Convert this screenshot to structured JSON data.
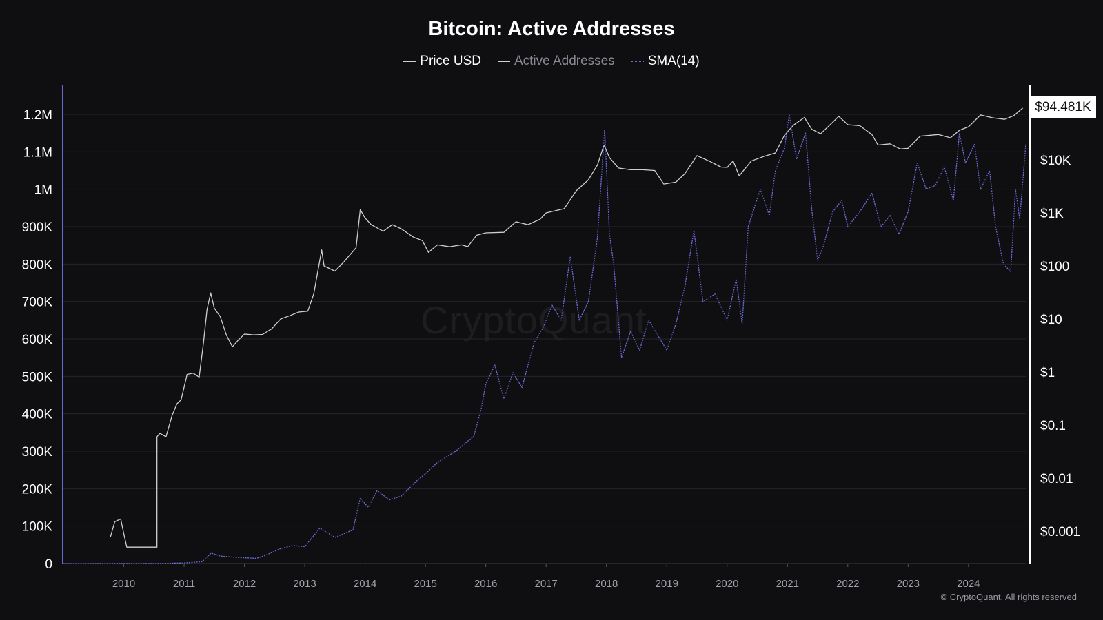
{
  "chart_data": {
    "type": "line",
    "title": "Bitcoin: Active Addresses",
    "legend": [
      {
        "label": "Price USD",
        "color": "#cfcfd4",
        "hidden": false
      },
      {
        "label": "Active Addresses",
        "color": "#cfcfd4",
        "hidden": true
      },
      {
        "label": "SMA(14)",
        "color": "#6b6bd6",
        "hidden": false
      }
    ],
    "x_ticks": [
      "2010",
      "2011",
      "2012",
      "2013",
      "2014",
      "2015",
      "2016",
      "2017",
      "2018",
      "2019",
      "2020",
      "2021",
      "2022",
      "2023",
      "2024"
    ],
    "left_axis": {
      "range": [
        0,
        1200000
      ],
      "ticks": [
        "0",
        "100K",
        "200K",
        "300K",
        "400K",
        "500K",
        "600K",
        "700K",
        "800K",
        "900K",
        "1M",
        "1.1M",
        "1.2M"
      ]
    },
    "right_axis": {
      "scale": "log",
      "ticks": [
        "$0.001",
        "$0.01",
        "$0.1",
        "$1",
        "$10",
        "$100",
        "$1K",
        "$10K"
      ],
      "current_value_label": "$94.481K"
    },
    "x_range": [
      2009.0,
      2024.95
    ],
    "series": [
      {
        "name": "Price USD",
        "axis": "right",
        "color": "#cfcfd4",
        "points": [
          [
            2009.78,
            0.00079
          ],
          [
            2009.85,
            0.0015
          ],
          [
            2009.95,
            0.0017
          ],
          [
            2010.0,
            0.0009
          ],
          [
            2010.05,
            0.0005
          ],
          [
            2010.55,
            0.0005
          ],
          [
            2010.55,
            0.06
          ],
          [
            2010.6,
            0.07
          ],
          [
            2010.7,
            0.06
          ],
          [
            2010.8,
            0.15
          ],
          [
            2010.88,
            0.25
          ],
          [
            2010.95,
            0.3
          ],
          [
            2011.05,
            0.9
          ],
          [
            2011.15,
            0.95
          ],
          [
            2011.25,
            0.8
          ],
          [
            2011.32,
            3.5
          ],
          [
            2011.38,
            15
          ],
          [
            2011.44,
            31
          ],
          [
            2011.5,
            16
          ],
          [
            2011.6,
            11
          ],
          [
            2011.7,
            5
          ],
          [
            2011.8,
            3
          ],
          [
            2011.9,
            4
          ],
          [
            2012.0,
            5.2
          ],
          [
            2012.15,
            5
          ],
          [
            2012.3,
            5.1
          ],
          [
            2012.45,
            6.5
          ],
          [
            2012.6,
            10
          ],
          [
            2012.75,
            11.5
          ],
          [
            2012.9,
            13.5
          ],
          [
            2013.05,
            14
          ],
          [
            2013.15,
            30
          ],
          [
            2013.28,
            200
          ],
          [
            2013.32,
            100
          ],
          [
            2013.5,
            80
          ],
          [
            2013.65,
            120
          ],
          [
            2013.85,
            220
          ],
          [
            2013.92,
            1150
          ],
          [
            2014.0,
            800
          ],
          [
            2014.1,
            600
          ],
          [
            2014.3,
            450
          ],
          [
            2014.45,
            600
          ],
          [
            2014.6,
            500
          ],
          [
            2014.8,
            350
          ],
          [
            2014.95,
            300
          ],
          [
            2015.05,
            180
          ],
          [
            2015.2,
            250
          ],
          [
            2015.4,
            230
          ],
          [
            2015.6,
            250
          ],
          [
            2015.7,
            230
          ],
          [
            2015.85,
            380
          ],
          [
            2016.0,
            420
          ],
          [
            2016.3,
            430
          ],
          [
            2016.5,
            680
          ],
          [
            2016.7,
            600
          ],
          [
            2016.9,
            760
          ],
          [
            2017.0,
            1000
          ],
          [
            2017.3,
            1200
          ],
          [
            2017.5,
            2600
          ],
          [
            2017.7,
            4200
          ],
          [
            2017.85,
            8000
          ],
          [
            2017.96,
            19000
          ],
          [
            2018.05,
            11000
          ],
          [
            2018.2,
            7000
          ],
          [
            2018.4,
            6500
          ],
          [
            2018.6,
            6500
          ],
          [
            2018.8,
            6300
          ],
          [
            2018.95,
            3500
          ],
          [
            2019.15,
            3800
          ],
          [
            2019.3,
            5500
          ],
          [
            2019.5,
            12000
          ],
          [
            2019.7,
            9500
          ],
          [
            2019.9,
            7300
          ],
          [
            2020.0,
            7200
          ],
          [
            2020.1,
            9500
          ],
          [
            2020.2,
            5000
          ],
          [
            2020.4,
            9500
          ],
          [
            2020.6,
            11500
          ],
          [
            2020.8,
            13500
          ],
          [
            2020.95,
            29000
          ],
          [
            2021.1,
            45000
          ],
          [
            2021.28,
            63000
          ],
          [
            2021.4,
            38000
          ],
          [
            2021.55,
            31000
          ],
          [
            2021.7,
            45000
          ],
          [
            2021.85,
            66000
          ],
          [
            2022.0,
            46000
          ],
          [
            2022.2,
            44000
          ],
          [
            2022.4,
            30000
          ],
          [
            2022.5,
            19000
          ],
          [
            2022.7,
            20000
          ],
          [
            2022.87,
            16000
          ],
          [
            2023.0,
            16500
          ],
          [
            2023.2,
            28000
          ],
          [
            2023.5,
            30000
          ],
          [
            2023.7,
            26000
          ],
          [
            2023.85,
            36000
          ],
          [
            2024.0,
            42000
          ],
          [
            2024.2,
            70000
          ],
          [
            2024.4,
            62000
          ],
          [
            2024.6,
            58000
          ],
          [
            2024.75,
            68000
          ],
          [
            2024.9,
            94481
          ]
        ]
      },
      {
        "name": "SMA(14)",
        "axis": "left",
        "color": "#6b6bd6",
        "points": [
          [
            2009.0,
            0
          ],
          [
            2010.5,
            200
          ],
          [
            2011.0,
            1500
          ],
          [
            2011.3,
            5000
          ],
          [
            2011.45,
            28000
          ],
          [
            2011.6,
            20000
          ],
          [
            2011.9,
            16000
          ],
          [
            2012.2,
            14000
          ],
          [
            2012.35,
            22000
          ],
          [
            2012.6,
            40000
          ],
          [
            2012.8,
            48000
          ],
          [
            2013.0,
            45000
          ],
          [
            2013.25,
            95000
          ],
          [
            2013.5,
            70000
          ],
          [
            2013.8,
            90000
          ],
          [
            2013.92,
            175000
          ],
          [
            2014.05,
            150000
          ],
          [
            2014.2,
            195000
          ],
          [
            2014.4,
            170000
          ],
          [
            2014.6,
            180000
          ],
          [
            2014.85,
            220000
          ],
          [
            2015.0,
            240000
          ],
          [
            2015.2,
            270000
          ],
          [
            2015.5,
            300000
          ],
          [
            2015.8,
            340000
          ],
          [
            2015.92,
            410000
          ],
          [
            2016.0,
            480000
          ],
          [
            2016.15,
            530000
          ],
          [
            2016.3,
            440000
          ],
          [
            2016.45,
            510000
          ],
          [
            2016.6,
            470000
          ],
          [
            2016.8,
            590000
          ],
          [
            2016.95,
            630000
          ],
          [
            2017.1,
            690000
          ],
          [
            2017.25,
            650000
          ],
          [
            2017.4,
            820000
          ],
          [
            2017.55,
            650000
          ],
          [
            2017.7,
            700000
          ],
          [
            2017.85,
            870000
          ],
          [
            2017.97,
            1160000
          ],
          [
            2018.05,
            880000
          ],
          [
            2018.12,
            800000
          ],
          [
            2018.25,
            550000
          ],
          [
            2018.4,
            620000
          ],
          [
            2018.55,
            570000
          ],
          [
            2018.7,
            650000
          ],
          [
            2018.85,
            610000
          ],
          [
            2019.0,
            570000
          ],
          [
            2019.15,
            640000
          ],
          [
            2019.3,
            740000
          ],
          [
            2019.45,
            890000
          ],
          [
            2019.6,
            700000
          ],
          [
            2019.8,
            720000
          ],
          [
            2020.0,
            650000
          ],
          [
            2020.15,
            760000
          ],
          [
            2020.25,
            640000
          ],
          [
            2020.35,
            900000
          ],
          [
            2020.55,
            1000000
          ],
          [
            2020.7,
            930000
          ],
          [
            2020.8,
            1050000
          ],
          [
            2020.95,
            1110000
          ],
          [
            2021.03,
            1200000
          ],
          [
            2021.15,
            1080000
          ],
          [
            2021.3,
            1150000
          ],
          [
            2021.4,
            950000
          ],
          [
            2021.5,
            810000
          ],
          [
            2021.6,
            850000
          ],
          [
            2021.75,
            940000
          ],
          [
            2021.9,
            970000
          ],
          [
            2022.0,
            900000
          ],
          [
            2022.2,
            940000
          ],
          [
            2022.4,
            990000
          ],
          [
            2022.55,
            900000
          ],
          [
            2022.7,
            930000
          ],
          [
            2022.85,
            880000
          ],
          [
            2023.0,
            940000
          ],
          [
            2023.15,
            1070000
          ],
          [
            2023.3,
            1000000
          ],
          [
            2023.45,
            1010000
          ],
          [
            2023.6,
            1060000
          ],
          [
            2023.75,
            970000
          ],
          [
            2023.85,
            1150000
          ],
          [
            2023.95,
            1070000
          ],
          [
            2024.1,
            1120000
          ],
          [
            2024.2,
            1000000
          ],
          [
            2024.35,
            1050000
          ],
          [
            2024.45,
            900000
          ],
          [
            2024.58,
            800000
          ],
          [
            2024.7,
            780000
          ],
          [
            2024.78,
            1000000
          ],
          [
            2024.85,
            920000
          ],
          [
            2024.95,
            1120000
          ]
        ]
      }
    ],
    "grid": true
  },
  "watermark": "CryptoQuant",
  "copyright": "© CryptoQuant. All rights reserved"
}
